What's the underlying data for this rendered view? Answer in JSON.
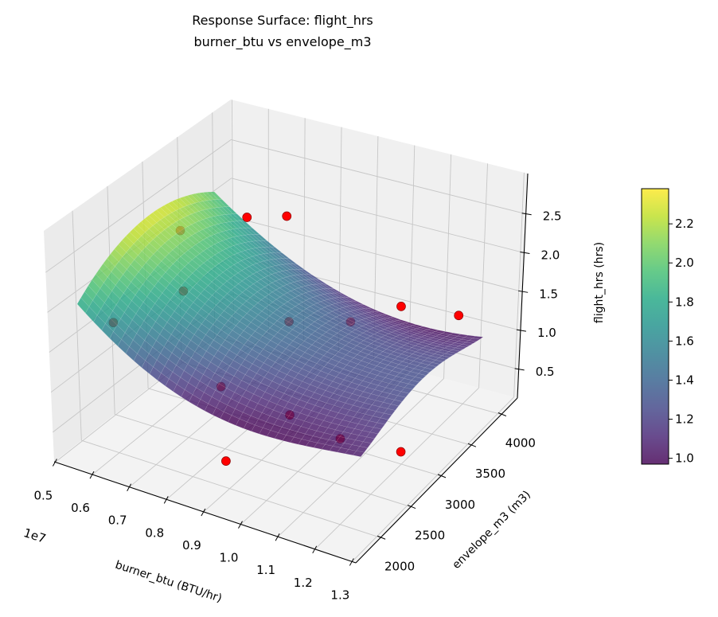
{
  "chart_data": {
    "type": "surface",
    "title": [
      "Response Surface: flight_hrs",
      "burner_btu vs envelope_m3"
    ],
    "xlabel": "burner_btu (BTU/hr)",
    "ylabel": "envelope_m3 (m3)",
    "zlabel": "flight_hrs (hrs)",
    "x_offset_text": "1e7",
    "xlim": [
      0.497,
      1.31
    ],
    "ylim": [
      1590,
      4265
    ],
    "zlim": [
      0.13,
      3.02
    ],
    "xticks": [
      "0.5",
      "0.6",
      "0.7",
      "0.8",
      "0.9",
      "1.0",
      "1.1",
      "1.2",
      "1.3"
    ],
    "yticks": [
      "2000",
      "2500",
      "3000",
      "3500",
      "4000"
    ],
    "zticks": [
      "0.5",
      "1.0",
      "1.5",
      "2.0",
      "2.5"
    ],
    "grid": true,
    "surface": {
      "colormap": "viridis",
      "alpha": 0.8,
      "x": [
        0.5,
        0.6875,
        0.875,
        1.0625,
        1.25
      ],
      "y": [
        2000,
        2500,
        3000,
        3500,
        4000
      ],
      "z": [
        [
          1.85,
          1.25,
          0.97,
          0.95,
          1.05
        ],
        [
          2.17,
          1.63,
          1.31,
          1.18,
          1.2
        ],
        [
          2.3,
          1.79,
          1.45,
          1.29,
          1.28
        ],
        [
          2.24,
          1.72,
          1.38,
          1.21,
          1.2
        ],
        [
          2.0,
          1.44,
          1.1,
          0.98,
          1.05
        ]
      ]
    },
    "scatter": {
      "color": "#ff0000",
      "edgecolor": "#8b0000",
      "x": [
        0.89,
        1.23,
        1.03,
        0.89,
        0.7,
        0.52,
        0.6,
        0.51,
        0.59,
        0.78,
        0.88,
        0.7,
        1.02,
        1.18
      ],
      "y": [
        2000,
        2800,
        3000,
        3000,
        3000,
        2400,
        3000,
        3450,
        4000,
        3600,
        4000,
        4000,
        4000,
        4000
      ],
      "z": [
        0.46,
        0.48,
        0.22,
        0.33,
        0.43,
        1.39,
        1.51,
        1.87,
        1.78,
        0.95,
        0.79,
        1.93,
        1.16,
        1.24
      ]
    },
    "colorbar": {
      "min": 0.97,
      "max": 2.38,
      "ticks": [
        "1.0",
        "1.2",
        "1.4",
        "1.6",
        "1.8",
        "2.0",
        "2.2"
      ]
    }
  }
}
